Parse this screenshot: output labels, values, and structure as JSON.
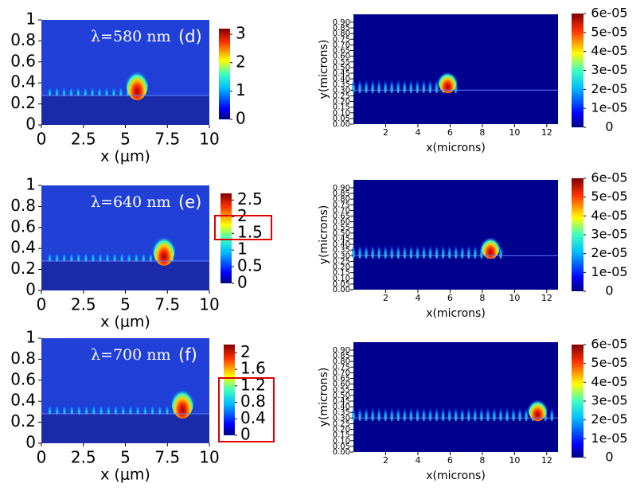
{
  "chart_data": [
    {
      "type": "heatmap",
      "annotation": "λ=580 nm",
      "panel_label": "(d)",
      "xlabel": "x (μm)",
      "xlim": [
        0,
        10
      ],
      "ylim": [
        0,
        1
      ],
      "xticks": [
        0,
        2.5,
        5,
        7.5,
        10
      ],
      "yticks": [
        0,
        0.2,
        0.4,
        0.6,
        0.8,
        1
      ],
      "colorbar": {
        "lim": [
          0,
          3.2
        ],
        "ticks": [
          0,
          1,
          2,
          3
        ]
      }
    },
    {
      "type": "heatmap",
      "xlabel": "x(microns)",
      "ylabel": "y(microns)",
      "xlim": [
        0,
        12.7
      ],
      "ylim": [
        0,
        0.97
      ],
      "xticks": [
        2,
        4,
        6,
        8,
        10,
        12
      ],
      "yticks": [
        {
          "value": 0,
          "label": "0.00"
        },
        {
          "value": 0.05,
          "label": "0.05"
        },
        {
          "value": 0.1,
          "label": "0.10"
        },
        {
          "value": 0.15,
          "label": "0.15"
        },
        {
          "value": 0.2,
          "label": "0.20"
        },
        {
          "value": 0.25,
          "label": "0.25"
        },
        {
          "value": 0.3,
          "label": "0.30"
        },
        {
          "value": 0.35,
          "label": "0.35"
        },
        {
          "value": 0.4,
          "label": "0.40"
        },
        {
          "value": 0.45,
          "label": "0.45"
        },
        {
          "value": 0.5,
          "label": "0.50"
        },
        {
          "value": 0.55,
          "label": "0.55"
        },
        {
          "value": 0.6,
          "label": "0.60"
        },
        {
          "value": 0.65,
          "label": "0.65"
        },
        {
          "value": 0.7,
          "label": "0.70"
        },
        {
          "value": 0.75,
          "label": "0.75"
        },
        {
          "value": 0.8,
          "label": "0.80"
        },
        {
          "value": 0.85,
          "label": "0.85"
        },
        {
          "value": 0.9,
          "label": "0.90"
        }
      ],
      "colorbar": {
        "lim": [
          0,
          6e-05
        ],
        "ticks": [
          0,
          {
            "value": 1e-05,
            "label": "1e-05"
          },
          {
            "value": 2e-05,
            "label": "2e-05"
          },
          {
            "value": 3e-05,
            "label": "3e-05"
          },
          {
            "value": 4e-05,
            "label": "4e-05"
          },
          {
            "value": 5e-05,
            "label": "5e-05"
          },
          {
            "value": 6e-05,
            "label": "6e-05"
          }
        ]
      }
    },
    {
      "type": "heatmap",
      "annotation": "λ=640 nm",
      "panel_label": "(e)",
      "xlabel": "x (μm)",
      "xlim": [
        0,
        10
      ],
      "ylim": [
        0,
        1
      ],
      "xticks": [
        0,
        2.5,
        5,
        7.5,
        10
      ],
      "yticks": [
        0,
        0.2,
        0.4,
        0.6,
        0.8,
        1
      ],
      "colorbar": {
        "lim": [
          0,
          2.7
        ],
        "ticks": [
          0,
          0.5,
          1,
          1.5,
          2,
          2.5
        ]
      }
    },
    {
      "type": "heatmap",
      "xlabel": "x(microns)",
      "ylabel": "y(microns)",
      "xlim": [
        0,
        12.7
      ],
      "ylim": [
        0,
        0.97
      ],
      "xticks": [
        2,
        4,
        6,
        8,
        10,
        12
      ],
      "yticks": [
        {
          "value": 0,
          "label": "0.00"
        },
        {
          "value": 0.05,
          "label": "0.05"
        },
        {
          "value": 0.1,
          "label": "0.10"
        },
        {
          "value": 0.15,
          "label": "0.15"
        },
        {
          "value": 0.2,
          "label": "0.20"
        },
        {
          "value": 0.25,
          "label": "0.25"
        },
        {
          "value": 0.3,
          "label": "0.30"
        },
        {
          "value": 0.35,
          "label": "0.35"
        },
        {
          "value": 0.4,
          "label": "0.40"
        },
        {
          "value": 0.45,
          "label": "0.45"
        },
        {
          "value": 0.5,
          "label": "0.50"
        },
        {
          "value": 0.55,
          "label": "0.55"
        },
        {
          "value": 0.6,
          "label": "0.60"
        },
        {
          "value": 0.65,
          "label": "0.65"
        },
        {
          "value": 0.7,
          "label": "0.70"
        },
        {
          "value": 0.75,
          "label": "0.75"
        },
        {
          "value": 0.8,
          "label": "0.80"
        },
        {
          "value": 0.85,
          "label": "0.85"
        },
        {
          "value": 0.9,
          "label": "0.90"
        }
      ],
      "colorbar": {
        "lim": [
          0,
          6e-05
        ],
        "ticks": [
          0,
          {
            "value": 1e-05,
            "label": "1e-05"
          },
          {
            "value": 2e-05,
            "label": "2e-05"
          },
          {
            "value": 3e-05,
            "label": "3e-05"
          },
          {
            "value": 4e-05,
            "label": "4e-05"
          },
          {
            "value": 5e-05,
            "label": "5e-05"
          },
          {
            "value": 6e-05,
            "label": "6e-05"
          }
        ]
      }
    },
    {
      "type": "heatmap",
      "annotation": "λ=700 nm",
      "panel_label": "(f)",
      "xlabel": "x (μm)",
      "xlim": [
        0,
        10
      ],
      "ylim": [
        0,
        1
      ],
      "xticks": [
        0,
        2.5,
        5,
        7.5,
        10
      ],
      "yticks": [
        0,
        0.2,
        0.4,
        0.6,
        0.8,
        1
      ],
      "colorbar": {
        "lim": [
          0,
          2.2
        ],
        "ticks": [
          0,
          0.4,
          0.8,
          1.2,
          1.6,
          2
        ]
      }
    },
    {
      "type": "heatmap",
      "xlabel": "x(microns)",
      "ylabel": "y(microns)",
      "xlim": [
        0,
        12.7
      ],
      "ylim": [
        0,
        0.97
      ],
      "xticks": [
        2,
        4,
        6,
        8,
        10,
        12
      ],
      "yticks": [
        {
          "value": 0,
          "label": "0.00"
        },
        {
          "value": 0.05,
          "label": "0.05"
        },
        {
          "value": 0.1,
          "label": "0.10"
        },
        {
          "value": 0.15,
          "label": "0.15"
        },
        {
          "value": 0.2,
          "label": "0.20"
        },
        {
          "value": 0.25,
          "label": "0.25"
        },
        {
          "value": 0.3,
          "label": "0.30"
        },
        {
          "value": 0.35,
          "label": "0.35"
        },
        {
          "value": 0.4,
          "label": "0.40"
        },
        {
          "value": 0.45,
          "label": "0.45"
        },
        {
          "value": 0.5,
          "label": "0.50"
        },
        {
          "value": 0.55,
          "label": "0.55"
        },
        {
          "value": 0.6,
          "label": "0.60"
        },
        {
          "value": 0.65,
          "label": "0.65"
        },
        {
          "value": 0.7,
          "label": "0.70"
        },
        {
          "value": 0.75,
          "label": "0.75"
        },
        {
          "value": 0.8,
          "label": "0.80"
        },
        {
          "value": 0.85,
          "label": "0.85"
        },
        {
          "value": 0.9,
          "label": "0.90"
        }
      ],
      "colorbar": {
        "lim": [
          0,
          6e-05
        ],
        "ticks": [
          0,
          {
            "value": 1e-05,
            "label": "1e-05"
          },
          {
            "value": 2e-05,
            "label": "2e-05"
          },
          {
            "value": 3e-05,
            "label": "3e-05"
          },
          {
            "value": 4e-05,
            "label": "4e-05"
          },
          {
            "value": 5e-05,
            "label": "5e-05"
          },
          {
            "value": 6e-05,
            "label": "6e-05"
          }
        ]
      }
    }
  ]
}
